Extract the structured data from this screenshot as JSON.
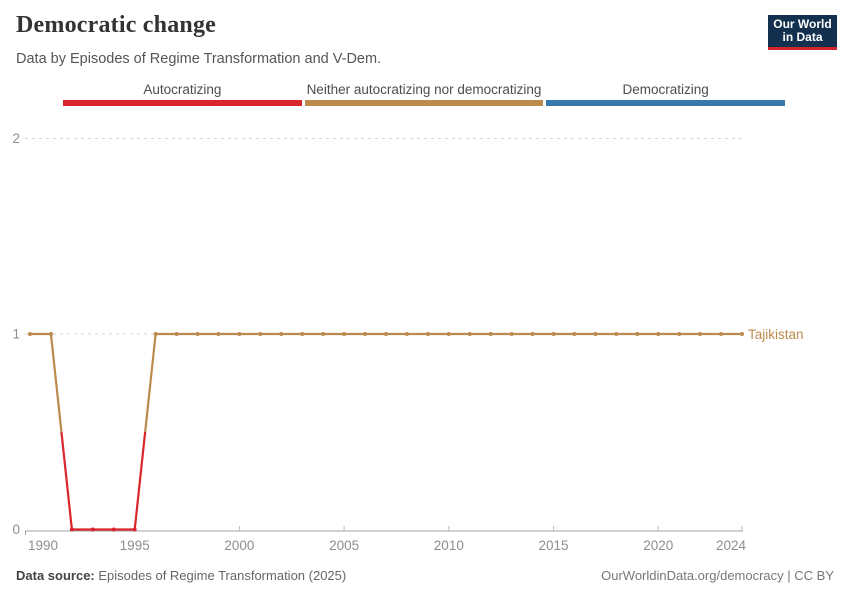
{
  "header": {
    "title": "Democratic change",
    "subtitle": "Data by Episodes of Regime Transformation and V-Dem."
  },
  "logo": {
    "line1": "Our World",
    "line2": "in Data",
    "bg_color": "#13304f",
    "accent_color": "#d0262c"
  },
  "legend": {
    "items": [
      {
        "label": "Autocratizing",
        "color": "#d8262c"
      },
      {
        "label": "Neither autocratizing nor democratizing",
        "color": "#bd8a4d"
      },
      {
        "label": "Democratizing",
        "color": "#3779ad"
      }
    ]
  },
  "chart_data": {
    "type": "line",
    "title": "Democratic change",
    "entity_label": "Tajikistan",
    "grid": "dashed horizontal gridlines at y=1 and y=2",
    "ylim": [
      0,
      2
    ],
    "y_ticks": [
      0,
      1,
      2
    ],
    "x_tick_labels": [
      1990,
      1995,
      2000,
      2005,
      2010,
      2015,
      2020,
      2024
    ],
    "x_range": [
      1990,
      2024
    ],
    "state_colors": {
      "autocratizing": "#d8262c",
      "neither": "#bd8a4d",
      "democratizing": "#3779ad"
    },
    "x": [
      1990,
      1991,
      1992,
      1993,
      1994,
      1995,
      1996,
      1997,
      1998,
      1999,
      2000,
      2001,
      2002,
      2003,
      2004,
      2005,
      2006,
      2007,
      2008,
      2009,
      2010,
      2011,
      2012,
      2013,
      2014,
      2015,
      2016,
      2017,
      2018,
      2019,
      2020,
      2021,
      2022,
      2023,
      2024
    ],
    "series": [
      {
        "name": "Tajikistan",
        "values": [
          1,
          1,
          0,
          0,
          0,
          0,
          1,
          1,
          1,
          1,
          1,
          1,
          1,
          1,
          1,
          1,
          1,
          1,
          1,
          1,
          1,
          1,
          1,
          1,
          1,
          1,
          1,
          1,
          1,
          1,
          1,
          1,
          1,
          1,
          1
        ],
        "states": [
          "neither",
          "neither",
          "autocratizing",
          "autocratizing",
          "autocratizing",
          "autocratizing",
          "neither",
          "neither",
          "neither",
          "neither",
          "neither",
          "neither",
          "neither",
          "neither",
          "neither",
          "neither",
          "neither",
          "neither",
          "neither",
          "neither",
          "neither",
          "neither",
          "neither",
          "neither",
          "neither",
          "neither",
          "neither",
          "neither",
          "neither",
          "neither",
          "neither",
          "neither",
          "neither",
          "neither",
          "neither"
        ]
      }
    ]
  },
  "footer": {
    "source_label": "Data source:",
    "source_value": "Episodes of Regime Transformation (2025)",
    "link": "OurWorldinData.org/democracy | CC BY"
  }
}
